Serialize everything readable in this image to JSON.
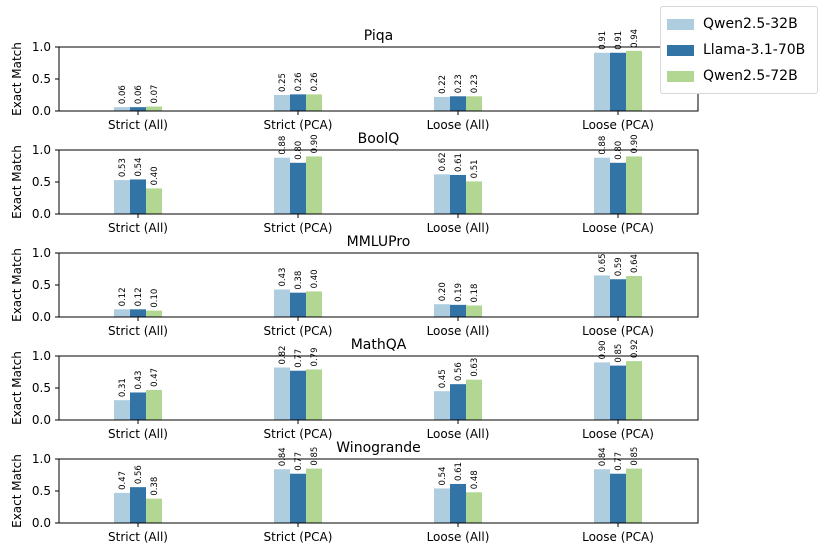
{
  "chart_data": {
    "type": "bar",
    "categories": [
      "Strict (All)",
      "Strict (PCA)",
      "Loose (All)",
      "Loose (PCA)"
    ],
    "ylabel": "Exact Match",
    "ylim": [
      0,
      1.0
    ],
    "yticks": [
      "0.0",
      "0.5",
      "1.0"
    ],
    "legend_position": "top-right",
    "series": [
      {
        "name": "Qwen2.5-32B",
        "color": "#aecddf"
      },
      {
        "name": "Llama-3.1-70B",
        "color": "#3274a6"
      },
      {
        "name": "Qwen2.5-72B",
        "color": "#b2d793"
      }
    ],
    "panels": [
      {
        "title": "Piqa",
        "values": [
          [
            0.06,
            0.25,
            0.22,
            0.91
          ],
          [
            0.06,
            0.26,
            0.23,
            0.91
          ],
          [
            0.07,
            0.26,
            0.23,
            0.94
          ]
        ],
        "labels": [
          [
            "0.06",
            "0.25",
            "0.22",
            "0.91"
          ],
          [
            "0.06",
            "0.26",
            "0.23",
            "0.91"
          ],
          [
            "0.07",
            "0.26",
            "0.23",
            "0.94"
          ]
        ]
      },
      {
        "title": "BoolQ",
        "values": [
          [
            0.53,
            0.88,
            0.62,
            0.88
          ],
          [
            0.54,
            0.8,
            0.61,
            0.8
          ],
          [
            0.4,
            0.9,
            0.51,
            0.9
          ]
        ],
        "labels": [
          [
            "0.53",
            "0.88",
            "0.62",
            "0.88"
          ],
          [
            "0.54",
            "0.80",
            "0.61",
            "0.80"
          ],
          [
            "0.40",
            "0.90",
            "0.51",
            "0.90"
          ]
        ]
      },
      {
        "title": "MMLUPro",
        "values": [
          [
            0.12,
            0.43,
            0.2,
            0.65
          ],
          [
            0.12,
            0.38,
            0.19,
            0.59
          ],
          [
            0.1,
            0.4,
            0.18,
            0.64
          ]
        ],
        "labels": [
          [
            "0.12",
            "0.43",
            "0.20",
            "0.65"
          ],
          [
            "0.12",
            "0.38",
            "0.19",
            "0.59"
          ],
          [
            "0.10",
            "0.40",
            "0.18",
            "0.64"
          ]
        ]
      },
      {
        "title": "MathQA",
        "values": [
          [
            0.31,
            0.82,
            0.45,
            0.9
          ],
          [
            0.43,
            0.77,
            0.56,
            0.85
          ],
          [
            0.47,
            0.79,
            0.63,
            0.92
          ]
        ],
        "labels": [
          [
            "0.31",
            "0.82",
            "0.45",
            "0.90"
          ],
          [
            "0.43",
            "0.77",
            "0.56",
            "0.85"
          ],
          [
            "0.47",
            "0.79",
            "0.63",
            "0.92"
          ]
        ]
      },
      {
        "title": "Winogrande",
        "values": [
          [
            0.47,
            0.84,
            0.54,
            0.84
          ],
          [
            0.56,
            0.77,
            0.61,
            0.77
          ],
          [
            0.38,
            0.85,
            0.48,
            0.85
          ]
        ],
        "labels": [
          [
            "0.47",
            "0.84",
            "0.54",
            "0.84"
          ],
          [
            "0.56",
            "0.77",
            "0.61",
            "0.77"
          ],
          [
            "0.38",
            "0.85",
            "0.48",
            "0.85"
          ]
        ]
      }
    ]
  }
}
